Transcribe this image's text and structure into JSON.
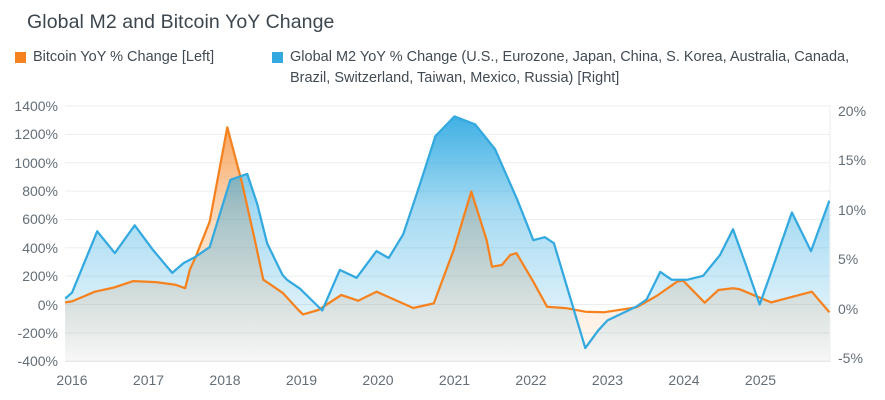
{
  "title": "Global M2 and Bitcoin YoY Change",
  "legend": {
    "items": [
      {
        "label": "Bitcoin YoY % Change [Left]",
        "color": "#F5821F"
      },
      {
        "label": "Global M2 YoY % Change (U.S., Eurozone, Japan, China, S. Korea, Australia, Canada, Brazil, Switzerland, Taiwan, Mexico, Russia) [Right]",
        "color": "#33A9E0"
      }
    ]
  },
  "chart_data": {
    "type": "area",
    "title": "Global M2 and Bitcoin YoY Change",
    "x_unit": "decimal year (monthly data 2016 - late 2025)",
    "grid": "horizontal",
    "legend_position": "top-left",
    "left_axis": {
      "label": "Bitcoin YoY % Change",
      "unit": "%",
      "ticks": [
        1400,
        1200,
        1000,
        800,
        600,
        400,
        200,
        0,
        -200,
        -400
      ],
      "range": [
        -420,
        1415
      ]
    },
    "right_axis": {
      "label": "Global M2 YoY % Change",
      "unit": "%",
      "ticks": [
        20,
        15,
        10,
        5,
        0,
        -5
      ],
      "range": [
        -5.8,
        20.6
      ]
    },
    "x_axis": {
      "ticks": [
        2016,
        2017,
        2018,
        2019,
        2020,
        2021,
        2022,
        2023,
        2024,
        2025
      ]
    },
    "series": [
      {
        "name": "Bitcoin YoY % Change [Left]",
        "axis": "left",
        "color": "#F5821F",
        "points": [
          [
            2015.91,
            15
          ],
          [
            2016.0,
            22
          ],
          [
            2016.3,
            90
          ],
          [
            2016.55,
            120
          ],
          [
            2016.8,
            165
          ],
          [
            2017.1,
            158
          ],
          [
            2017.35,
            140
          ],
          [
            2017.48,
            115
          ],
          [
            2017.54,
            245
          ],
          [
            2017.62,
            340
          ],
          [
            2017.8,
            585
          ],
          [
            2018.03,
            1250
          ],
          [
            2018.22,
            865
          ],
          [
            2018.39,
            455
          ],
          [
            2018.5,
            175
          ],
          [
            2018.57,
            150
          ],
          [
            2018.76,
            80
          ],
          [
            2018.96,
            -39
          ],
          [
            2019.02,
            -70
          ],
          [
            2019.22,
            -39
          ],
          [
            2019.52,
            67
          ],
          [
            2019.74,
            27
          ],
          [
            2019.98,
            90
          ],
          [
            2020.46,
            -25
          ],
          [
            2020.73,
            8
          ],
          [
            2020.99,
            385
          ],
          [
            2021.22,
            797
          ],
          [
            2021.42,
            455
          ],
          [
            2021.49,
            267
          ],
          [
            2021.62,
            279
          ],
          [
            2021.73,
            350
          ],
          [
            2021.81,
            362
          ],
          [
            2022.03,
            161
          ],
          [
            2022.21,
            -16
          ],
          [
            2022.47,
            -27
          ],
          [
            2022.71,
            -51
          ],
          [
            2022.95,
            -55
          ],
          [
            2023.38,
            -20
          ],
          [
            2023.64,
            60
          ],
          [
            2023.91,
            161
          ],
          [
            2023.99,
            168
          ],
          [
            2024.27,
            13
          ],
          [
            2024.45,
            102
          ],
          [
            2024.64,
            114
          ],
          [
            2024.73,
            107
          ],
          [
            2025.14,
            15
          ],
          [
            2025.67,
            90
          ],
          [
            2025.9,
            -55
          ]
        ]
      },
      {
        "name": "Global M2 YoY % Change (U.S., Eurozone, Japan, China, S. Korea, Australia, Canada, Brazil, Switzerland, Taiwan, Mexico, Russia) [Right]",
        "axis": "right",
        "color": "#33A9E0",
        "points": [
          [
            2015.91,
            1.0
          ],
          [
            2016.0,
            1.6
          ],
          [
            2016.33,
            7.8
          ],
          [
            2016.56,
            5.6
          ],
          [
            2016.82,
            8.4
          ],
          [
            2017.05,
            6.0
          ],
          [
            2017.31,
            3.6
          ],
          [
            2017.46,
            4.6
          ],
          [
            2017.61,
            5.2
          ],
          [
            2017.8,
            6.2
          ],
          [
            2018.07,
            13.0
          ],
          [
            2018.29,
            13.6
          ],
          [
            2018.42,
            10.6
          ],
          [
            2018.55,
            6.6
          ],
          [
            2018.75,
            3.4
          ],
          [
            2018.81,
            2.9
          ],
          [
            2018.98,
            2.0
          ],
          [
            2019.27,
            -0.2
          ],
          [
            2019.5,
            3.9
          ],
          [
            2019.72,
            3.1
          ],
          [
            2019.98,
            5.8
          ],
          [
            2020.14,
            5.1
          ],
          [
            2020.33,
            7.5
          ],
          [
            2020.55,
            12.6
          ],
          [
            2020.75,
            17.4
          ],
          [
            2021.0,
            19.4
          ],
          [
            2021.27,
            18.6
          ],
          [
            2021.53,
            16.1
          ],
          [
            2021.82,
            11.0
          ],
          [
            2022.03,
            6.9
          ],
          [
            2022.18,
            7.2
          ],
          [
            2022.3,
            6.6
          ],
          [
            2022.71,
            -4.0
          ],
          [
            2022.88,
            -2.2
          ],
          [
            2023.0,
            -1.2
          ],
          [
            2023.38,
            0.2
          ],
          [
            2023.51,
            0.9
          ],
          [
            2023.69,
            3.7
          ],
          [
            2023.84,
            2.9
          ],
          [
            2024.04,
            2.9
          ],
          [
            2024.25,
            3.3
          ],
          [
            2024.47,
            5.4
          ],
          [
            2024.64,
            8.0
          ],
          [
            2024.8,
            4.6
          ],
          [
            2024.99,
            0.4
          ],
          [
            2025.15,
            3.9
          ],
          [
            2025.41,
            9.7
          ],
          [
            2025.66,
            5.8
          ],
          [
            2025.9,
            10.9
          ]
        ]
      }
    ]
  }
}
